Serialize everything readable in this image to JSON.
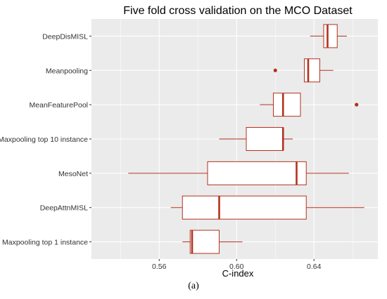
{
  "chart_data": {
    "type": "boxplot",
    "orientation": "horizontal",
    "title": "Five fold  cross validation on the MCO Dataset",
    "xlabel": "C-index",
    "ylabel": "",
    "xlim": [
      0.525,
      0.673
    ],
    "xticks": [
      "0.56",
      "0.60",
      "0.64"
    ],
    "xtick_values": [
      0.56,
      0.6,
      0.64
    ],
    "grid": true,
    "legend": "none",
    "colors": {
      "panel": "#ebebeb",
      "grid": "#ffffff",
      "box": "#b2321e",
      "fill": "#ffffff",
      "text": "#000000"
    },
    "categories": [
      "DeepDisMISL",
      "Meanpooling",
      "MeanFeaturePool",
      "Maxpooling top 10 instance",
      "MesoNet",
      "DeepAttnMISL",
      "Maxpooling top 1 instance"
    ],
    "boxes": [
      {
        "label": "DeepDisMISL",
        "whislo": 0.638,
        "q1": 0.645,
        "med": 0.647,
        "q3": 0.652,
        "whishi": 0.657,
        "outliers": []
      },
      {
        "label": "Meanpooling",
        "whislo": 0.635,
        "q1": 0.635,
        "med": 0.637,
        "q3": 0.643,
        "whishi": 0.65,
        "outliers": [
          0.62
        ]
      },
      {
        "label": "MeanFeaturePool",
        "whislo": 0.612,
        "q1": 0.619,
        "med": 0.624,
        "q3": 0.633,
        "whishi": 0.633,
        "outliers": [
          0.662
        ]
      },
      {
        "label": "Maxpooling top 10 instance",
        "whislo": 0.591,
        "q1": 0.605,
        "med": 0.624,
        "q3": 0.624,
        "whishi": 0.629,
        "outliers": []
      },
      {
        "label": "MesoNet",
        "whislo": 0.544,
        "q1": 0.585,
        "med": 0.631,
        "q3": 0.636,
        "whishi": 0.658,
        "outliers": []
      },
      {
        "label": "DeepAttnMISL",
        "whislo": 0.566,
        "q1": 0.572,
        "med": 0.591,
        "q3": 0.636,
        "whishi": 0.666,
        "outliers": []
      },
      {
        "label": "Maxpooling top 1 instance",
        "whislo": 0.572,
        "q1": 0.576,
        "med": 0.577,
        "q3": 0.591,
        "whishi": 0.603,
        "outliers": []
      }
    ]
  },
  "caption": "(a)"
}
